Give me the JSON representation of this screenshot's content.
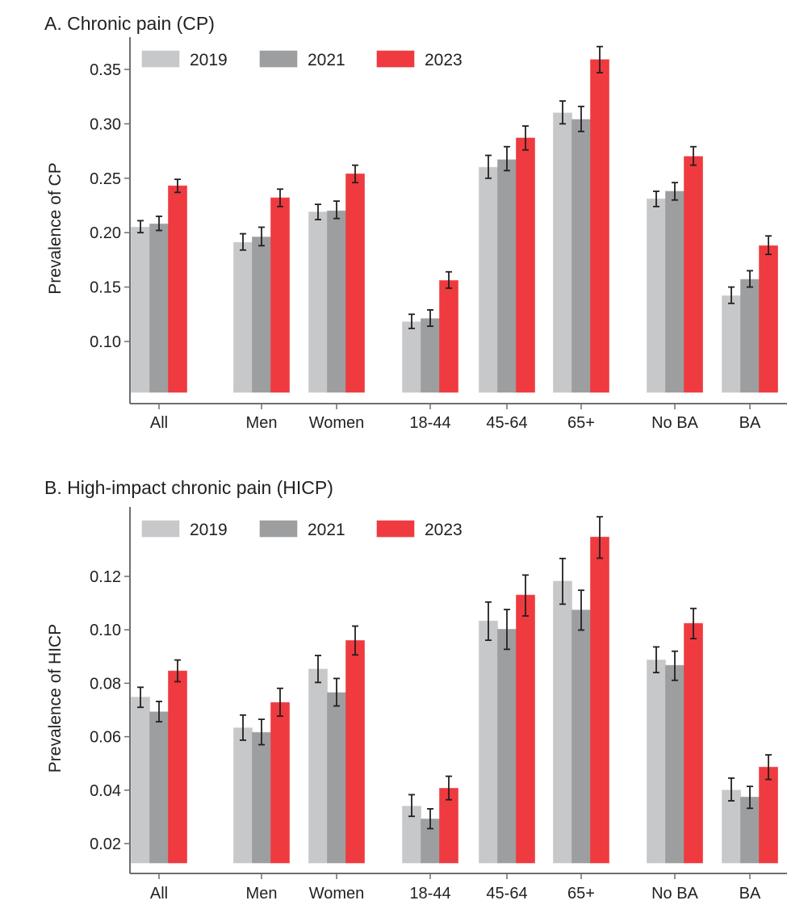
{
  "chart_data": [
    {
      "type": "bar",
      "title": "A. Chronic pain (CP)",
      "xlabel": "",
      "ylabel": "Prevalence of CP",
      "ylim": [
        0.0525,
        0.375
      ],
      "yticks": [
        0.1,
        0.15,
        0.2,
        0.25,
        0.3,
        0.35
      ],
      "ytick_labels": [
        "0.10",
        "0.15",
        "0.20",
        "0.25",
        "0.30",
        "0.35"
      ],
      "grid": false,
      "legend_position": "top-left",
      "categories": [
        "All",
        "Men",
        "Women",
        "18-44",
        "45-64",
        "65+",
        "No BA",
        "BA"
      ],
      "category_groups": [
        [
          0
        ],
        [
          1,
          2
        ],
        [
          3,
          4,
          5
        ],
        [
          6,
          7
        ]
      ],
      "series": [
        {
          "name": "2019",
          "color": "#c7c8ca",
          "values": [
            0.205,
            0.191,
            0.219,
            0.118,
            0.26,
            0.31,
            0.231,
            0.142
          ],
          "ci_low": [
            0.2,
            0.184,
            0.212,
            0.112,
            0.25,
            0.3,
            0.224,
            0.135
          ],
          "ci_high": [
            0.211,
            0.199,
            0.226,
            0.125,
            0.271,
            0.321,
            0.238,
            0.15
          ]
        },
        {
          "name": "2021",
          "color": "#9d9ea0",
          "values": [
            0.208,
            0.196,
            0.22,
            0.121,
            0.267,
            0.304,
            0.238,
            0.157
          ],
          "ci_low": [
            0.202,
            0.188,
            0.213,
            0.114,
            0.257,
            0.293,
            0.23,
            0.15
          ],
          "ci_high": [
            0.215,
            0.205,
            0.229,
            0.129,
            0.279,
            0.316,
            0.246,
            0.165
          ]
        },
        {
          "name": "2023",
          "color": "#ef3a3f",
          "values": [
            0.243,
            0.232,
            0.254,
            0.156,
            0.287,
            0.359,
            0.27,
            0.188
          ],
          "ci_low": [
            0.237,
            0.224,
            0.246,
            0.149,
            0.276,
            0.347,
            0.262,
            0.18
          ],
          "ci_high": [
            0.249,
            0.24,
            0.262,
            0.164,
            0.298,
            0.371,
            0.279,
            0.197
          ]
        }
      ]
    },
    {
      "type": "bar",
      "title": "B. High-impact chronic pain (HICP)",
      "xlabel": "",
      "ylabel": "Prevalence of HICP",
      "ylim": [
        0.0127,
        0.144
      ],
      "yticks": [
        0.02,
        0.04,
        0.06,
        0.08,
        0.1,
        0.12
      ],
      "ytick_labels": [
        "0.02",
        "0.04",
        "0.06",
        "0.08",
        "0.10",
        "0.12"
      ],
      "grid": false,
      "legend_position": "top-left",
      "categories": [
        "All",
        "Men",
        "Women",
        "18-44",
        "45-64",
        "65+",
        "No BA",
        "BA"
      ],
      "category_groups": [
        [
          0
        ],
        [
          1,
          2
        ],
        [
          3,
          4,
          5
        ],
        [
          6,
          7
        ]
      ],
      "series": [
        {
          "name": "2019",
          "color": "#c7c8ca",
          "values": [
            0.0748,
            0.0633,
            0.0853,
            0.034,
            0.1033,
            0.1182,
            0.0887,
            0.04
          ],
          "ci_low": [
            0.071,
            0.0587,
            0.0803,
            0.0302,
            0.0961,
            0.1096,
            0.084,
            0.036
          ],
          "ci_high": [
            0.0785,
            0.0681,
            0.0904,
            0.0383,
            0.1104,
            0.1267,
            0.0936,
            0.0445
          ]
        },
        {
          "name": "2021",
          "color": "#9d9ea0",
          "values": [
            0.0693,
            0.0616,
            0.0765,
            0.0292,
            0.1002,
            0.1074,
            0.0867,
            0.0374
          ],
          "ci_low": [
            0.0656,
            0.057,
            0.0715,
            0.0256,
            0.0927,
            0.0999,
            0.0811,
            0.0332
          ],
          "ci_high": [
            0.0732,
            0.0665,
            0.0818,
            0.033,
            0.1076,
            0.1148,
            0.092,
            0.0414
          ]
        },
        {
          "name": "2023",
          "color": "#ef3a3f",
          "values": [
            0.0846,
            0.0728,
            0.096,
            0.0407,
            0.113,
            0.1347,
            0.1024,
            0.0486
          ],
          "ci_low": [
            0.0806,
            0.0677,
            0.0906,
            0.0364,
            0.1052,
            0.1268,
            0.0967,
            0.044
          ],
          "ci_high": [
            0.0887,
            0.0781,
            0.1014,
            0.0452,
            0.1205,
            0.1423,
            0.108,
            0.0532
          ]
        }
      ]
    }
  ]
}
